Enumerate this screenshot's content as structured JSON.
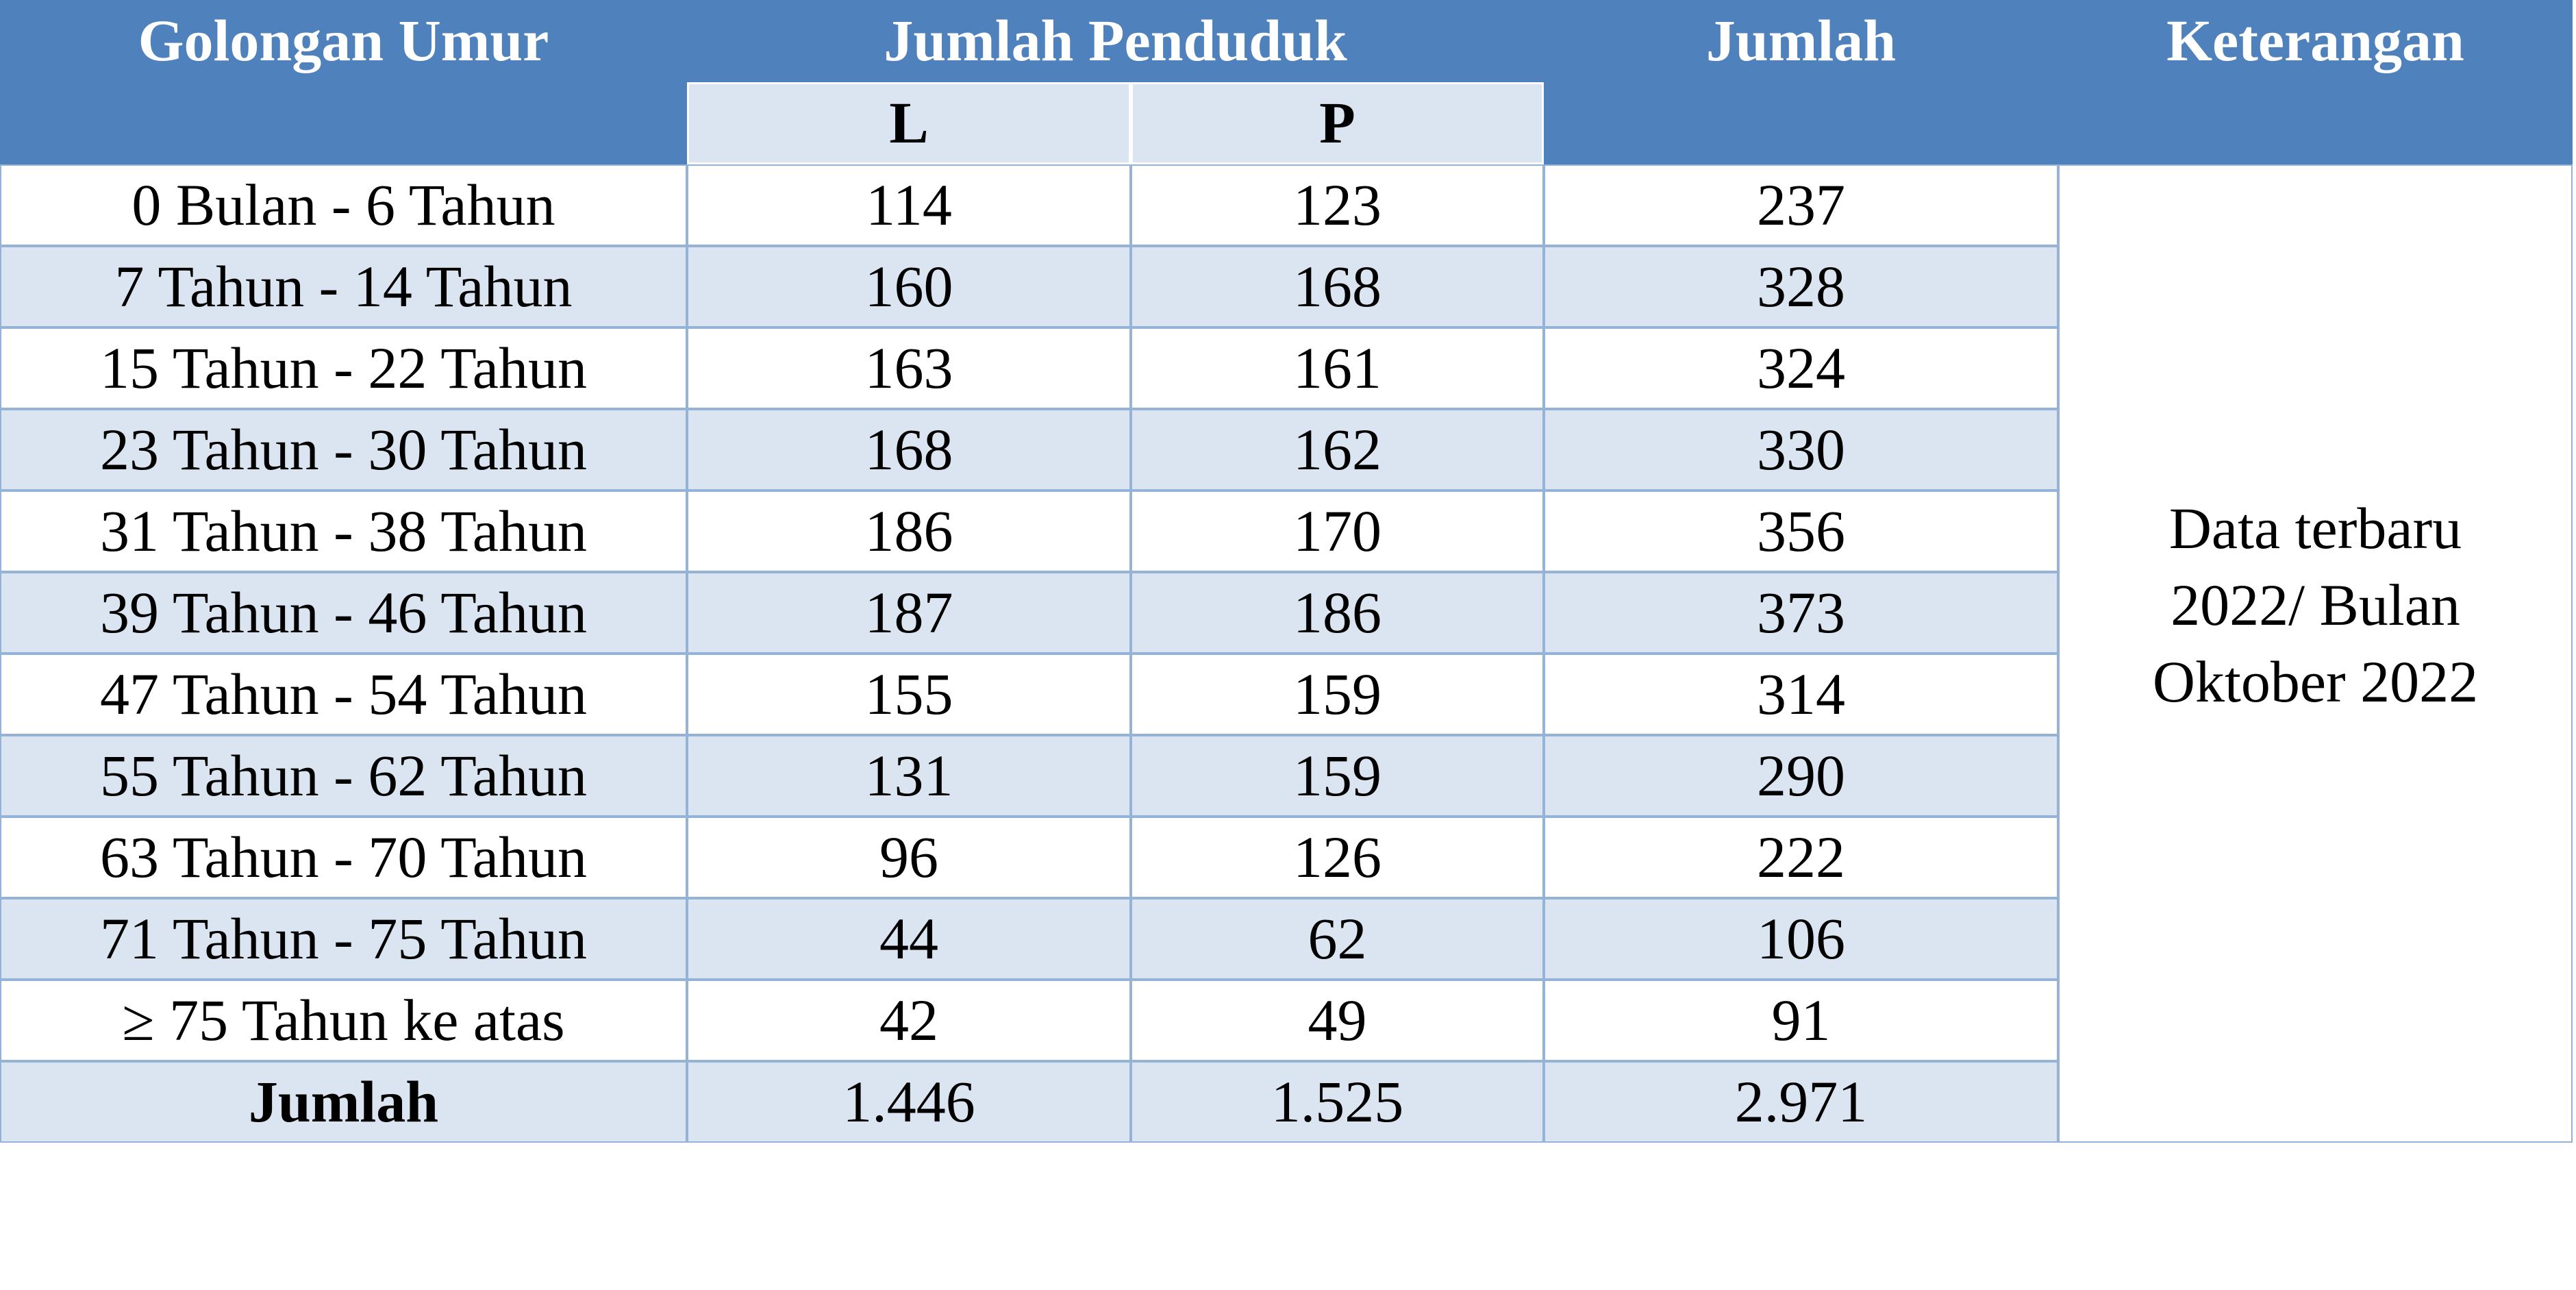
{
  "header": {
    "age_group": "Golongan Umur",
    "population": "Jumlah Penduduk",
    "male": "L",
    "female": "P",
    "total": "Jumlah",
    "note": "Keterangan"
  },
  "table": {
    "rows": [
      [
        "0 Bulan - 6 Tahun",
        "114",
        "123",
        "237"
      ],
      [
        "7 Tahun - 14 Tahun",
        "160",
        "168",
        "328"
      ],
      [
        "15 Tahun - 22 Tahun",
        "163",
        "161",
        "324"
      ],
      [
        "23 Tahun - 30 Tahun",
        "168",
        "162",
        "330"
      ],
      [
        "31 Tahun - 38 Tahun",
        "186",
        "170",
        "356"
      ],
      [
        "39 Tahun - 46 Tahun",
        "187",
        "186",
        "373"
      ],
      [
        "47 Tahun - 54 Tahun",
        "155",
        "159",
        "314"
      ],
      [
        "55 Tahun - 62 Tahun",
        "131",
        "159",
        "290"
      ],
      [
        "63 Tahun - 70 Tahun",
        "96",
        "126",
        "222"
      ],
      [
        "71 Tahun - 75 Tahun",
        "44",
        "62",
        "106"
      ],
      [
        "≥ 75 Tahun ke atas",
        "42",
        "49",
        "91"
      ],
      [
        "Jumlah",
        "1.446",
        "1.525",
        "2.971"
      ]
    ],
    "note": "Data terbaru 2022/ Bulan Oktober 2022"
  }
}
